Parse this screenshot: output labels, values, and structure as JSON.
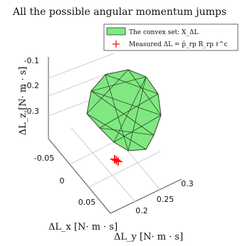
{
  "chart_data": {
    "type": "scatter",
    "projection": "3d",
    "title": "All the possible angular momentum jumps",
    "xlabel": "ΔL_x [N· m · s]",
    "ylabel": "ΔL_y [N· m · s]",
    "zlabel": "ΔL_z [N· m · s]",
    "x_ticks": [
      "-0.05",
      "0",
      "0.05"
    ],
    "y_ticks": [
      "0.2",
      "0.25",
      "0.3"
    ],
    "z_ticks": [
      "-0.1",
      "-0.2",
      "-0.3"
    ],
    "xlim": [
      -0.08,
      0.08
    ],
    "ylim": [
      0.18,
      0.32
    ],
    "zlim": [
      -0.35,
      -0.08
    ],
    "grid": true,
    "legend_position": "top-right",
    "colors": {
      "convex_fill": "#80e880",
      "convex_edge": "#2a4a2a",
      "measured": "#ff0000"
    },
    "series": [
      {
        "name": "The convex set: X_ΔL",
        "kind": "convex-hull"
      },
      {
        "name": "Measured  ΔL = p̂_rp R_rp ℓ^c",
        "kind": "marker",
        "points": [
          {
            "x": 0.01,
            "y": 0.245,
            "z": -0.335
          },
          {
            "x": 0.012,
            "y": 0.247,
            "z": -0.338
          },
          {
            "x": 0.008,
            "y": 0.243,
            "z": -0.333
          }
        ]
      }
    ]
  }
}
